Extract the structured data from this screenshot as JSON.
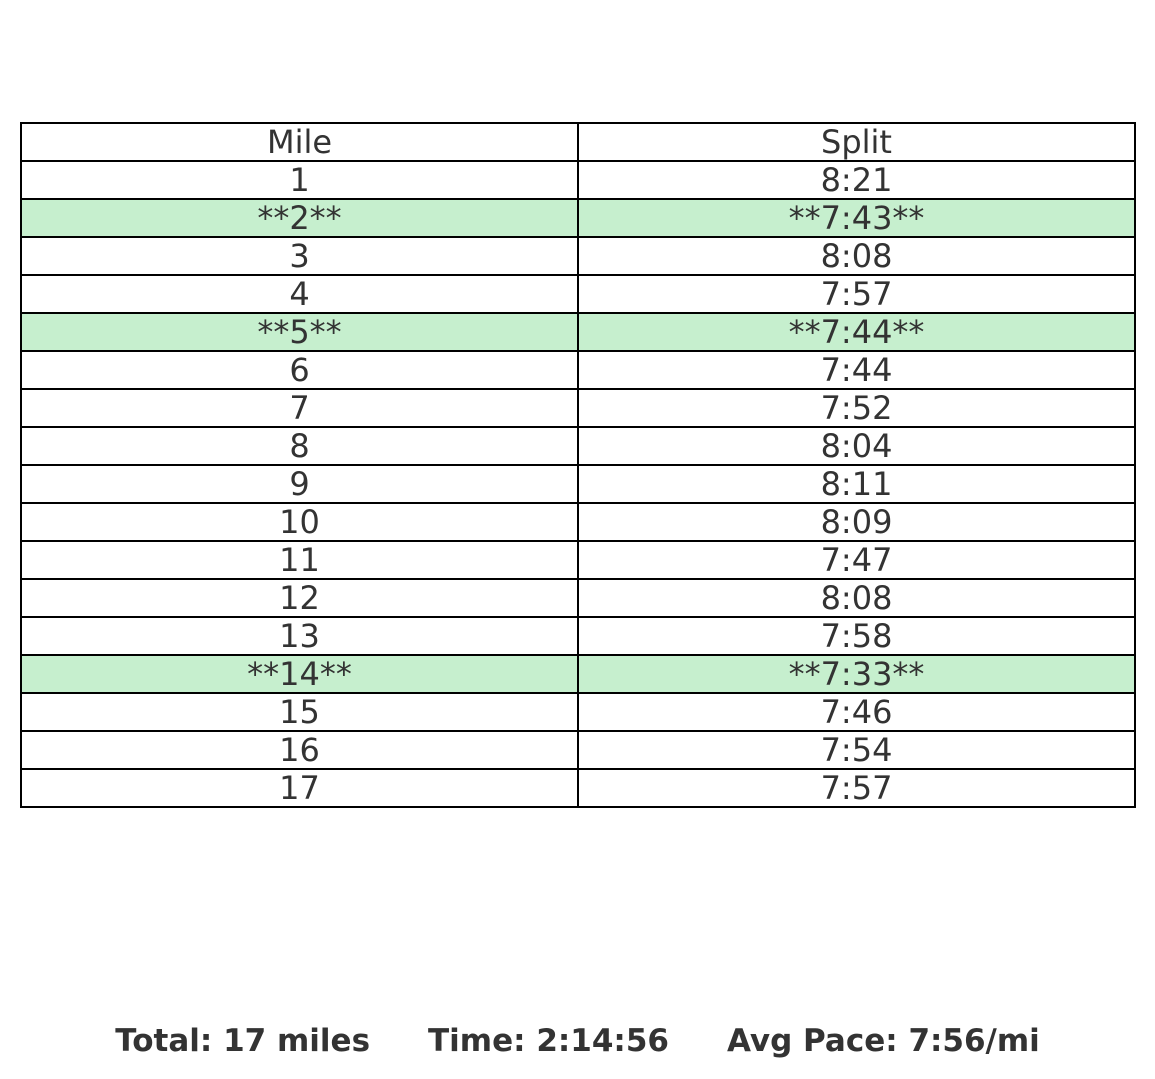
{
  "chart_data": {
    "type": "table",
    "columns": [
      "Mile",
      "Split"
    ],
    "rows": [
      {
        "mile": "1",
        "split": "8:21",
        "highlight": false
      },
      {
        "mile": "**2**",
        "split": "**7:43**",
        "highlight": true
      },
      {
        "mile": "3",
        "split": "8:08",
        "highlight": false
      },
      {
        "mile": "4",
        "split": "7:57",
        "highlight": false
      },
      {
        "mile": "**5**",
        "split": "**7:44**",
        "highlight": true
      },
      {
        "mile": "6",
        "split": "7:44",
        "highlight": false
      },
      {
        "mile": "7",
        "split": "7:52",
        "highlight": false
      },
      {
        "mile": "8",
        "split": "8:04",
        "highlight": false
      },
      {
        "mile": "9",
        "split": "8:11",
        "highlight": false
      },
      {
        "mile": "10",
        "split": "8:09",
        "highlight": false
      },
      {
        "mile": "11",
        "split": "7:47",
        "highlight": false
      },
      {
        "mile": "12",
        "split": "8:08",
        "highlight": false
      },
      {
        "mile": "13",
        "split": "7:58",
        "highlight": false
      },
      {
        "mile": "**14**",
        "split": "**7:33**",
        "highlight": true
      },
      {
        "mile": "15",
        "split": "7:46",
        "highlight": false
      },
      {
        "mile": "16",
        "split": "7:54",
        "highlight": false
      },
      {
        "mile": "17",
        "split": "7:57",
        "highlight": false
      }
    ],
    "highlight_color": "#c6efce",
    "border_color": "#000000",
    "text_color": "#333333"
  },
  "summary": {
    "total": "Total: 17 miles",
    "time": "Time: 2:14:56",
    "avg_pace": "Avg Pace: 7:56/mi"
  }
}
